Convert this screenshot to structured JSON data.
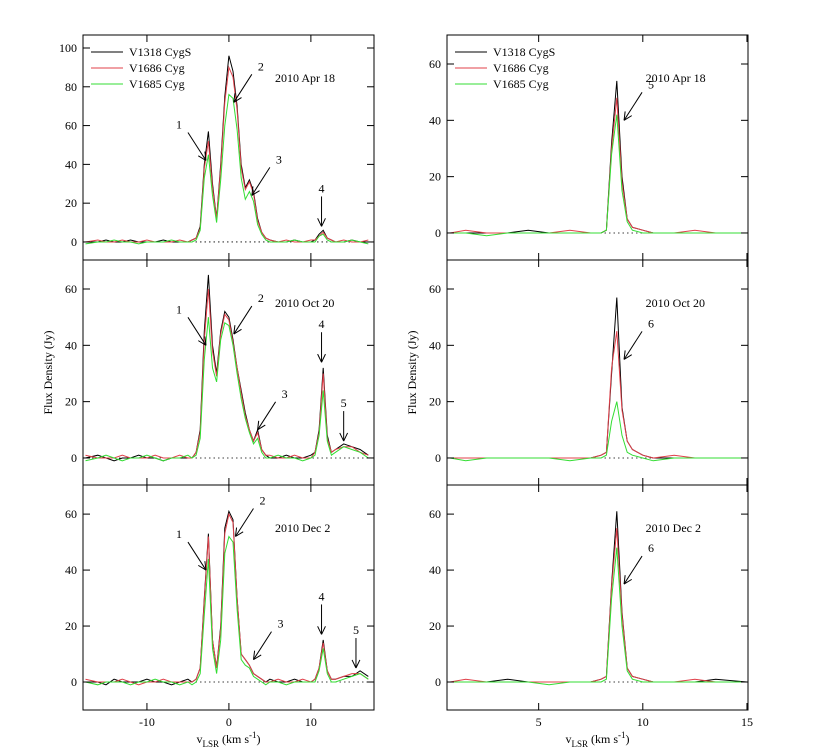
{
  "chart_data": [
    {
      "type": "line",
      "label": "2010 Apr 18",
      "legend": "upper left",
      "show_xticklabels": false,
      "xlim": [
        -17.8,
        17.7
      ],
      "xticks": [
        -10,
        0,
        10
      ],
      "ylim": [
        -9.3,
        106.7
      ],
      "yticks": [
        0,
        20,
        40,
        60,
        80,
        100
      ],
      "x": [
        -17.5,
        -16,
        -15,
        -14,
        -13,
        -12,
        -11,
        -10,
        -9,
        -8,
        -7,
        -6,
        -5,
        -4.5,
        -4,
        -3.5,
        -3,
        -2.5,
        -2,
        -1.5,
        -1,
        -0.5,
        0,
        0.5,
        1,
        1.5,
        2,
        2.5,
        3,
        3.5,
        4,
        4.5,
        5,
        6,
        7,
        8,
        9,
        10,
        10.5,
        11,
        11.5,
        12,
        12.5,
        13,
        14,
        15,
        16,
        17
      ],
      "series": [
        {
          "name": "V1318 CygS",
          "color": "#000000",
          "values": [
            0,
            0,
            1,
            0,
            0,
            1,
            0,
            0,
            0,
            1,
            0,
            0,
            0,
            1,
            2,
            8,
            40,
            57,
            30,
            12,
            40,
            75,
            96,
            88,
            70,
            40,
            28,
            32,
            26,
            12,
            5,
            2,
            1,
            0,
            0,
            1,
            0,
            0,
            1,
            4,
            6,
            2,
            1,
            0,
            0,
            1,
            0,
            0
          ]
        },
        {
          "name": "V1686 Cyg",
          "color": "#e0404a",
          "values": [
            0,
            1,
            0,
            0,
            1,
            0,
            0,
            1,
            0,
            0,
            0,
            1,
            0,
            1,
            2,
            7,
            38,
            52,
            28,
            12,
            38,
            72,
            90,
            85,
            68,
            38,
            27,
            31,
            25,
            11,
            5,
            2,
            1,
            0,
            1,
            0,
            0,
            1,
            1,
            3,
            5,
            2,
            1,
            0,
            1,
            0,
            0,
            1
          ]
        },
        {
          "name": "V1685 Cyg",
          "color": "#33dd33",
          "values": [
            -1,
            0,
            0,
            1,
            0,
            0,
            -1,
            0,
            0,
            0,
            1,
            0,
            0,
            0,
            1,
            6,
            33,
            45,
            24,
            10,
            32,
            60,
            76,
            74,
            58,
            33,
            22,
            26,
            21,
            9,
            4,
            1,
            0,
            0,
            0,
            1,
            0,
            0,
            0,
            3,
            4,
            1,
            0,
            0,
            0,
            1,
            0,
            -1
          ]
        }
      ],
      "annotations": [
        {
          "text": "1",
          "x": -2.8,
          "y": 42,
          "from": "upper-left"
        },
        {
          "text": "2",
          "x": 0.6,
          "y": 72,
          "from": "upper-right"
        },
        {
          "text": "3",
          "x": 2.8,
          "y": 24,
          "from": "upper-right"
        },
        {
          "text": "4",
          "x": 11.3,
          "y": 8,
          "from": "above"
        }
      ]
    },
    {
      "type": "line",
      "label": "2010 Apr 18",
      "legend": "upper left",
      "show_xticklabels": false,
      "xlim": [
        0.6,
        15.05
      ],
      "xticks": [
        5,
        10,
        15
      ],
      "ylim": [
        -9.6,
        70.3
      ],
      "yticks": [
        0,
        20,
        40,
        60
      ],
      "x": [
        0.75,
        1.5,
        2.5,
        3.5,
        4.5,
        5.5,
        6.5,
        7.5,
        8,
        8.25,
        8.5,
        8.75,
        9,
        9.25,
        9.5,
        10,
        10.5,
        11.5,
        12.5,
        13.5,
        15
      ],
      "series": [
        {
          "name": "V1318 CygS",
          "color": "#000000",
          "values": [
            0,
            0,
            0,
            0,
            1,
            0,
            0,
            0,
            0,
            1,
            32,
            54,
            20,
            5,
            2,
            1,
            0,
            0,
            0,
            0,
            0
          ]
        },
        {
          "name": "V1686 Cyg",
          "color": "#e0404a",
          "values": [
            0,
            1,
            0,
            0,
            0,
            0,
            1,
            0,
            0,
            1,
            30,
            48,
            18,
            5,
            2,
            1,
            0,
            0,
            1,
            0,
            0
          ]
        },
        {
          "name": "V1685 Cyg",
          "color": "#33dd33",
          "values": [
            0,
            0,
            -1,
            0,
            0,
            0,
            0,
            0,
            0,
            1,
            28,
            42,
            15,
            4,
            1,
            0,
            0,
            0,
            0,
            0,
            0
          ]
        }
      ],
      "annotations": [
        {
          "text": "5",
          "x": 9.1,
          "y": 40,
          "from": "upper-right"
        }
      ]
    },
    {
      "type": "line",
      "label": "2010 Oct 20",
      "ylabel": "Flux Density (Jy)",
      "show_xticklabels": false,
      "xlim": [
        -17.8,
        17.7
      ],
      "xticks": [
        -10,
        0,
        10
      ],
      "ylim": [
        -9.6,
        70.3
      ],
      "yticks": [
        0,
        20,
        40,
        60
      ],
      "x": [
        -17.5,
        -16,
        -15,
        -14,
        -13,
        -12,
        -11,
        -10,
        -9,
        -8,
        -7,
        -6,
        -5,
        -4.5,
        -4,
        -3.5,
        -3,
        -2.5,
        -2,
        -1.5,
        -1,
        -0.5,
        0,
        0.5,
        1,
        1.5,
        2,
        2.5,
        3,
        3.5,
        4,
        4.5,
        5,
        6,
        7,
        8,
        9,
        10,
        10.5,
        11,
        11.5,
        12,
        12.5,
        13,
        14,
        15,
        16,
        17
      ],
      "series": [
        {
          "color": "#000000",
          "values": [
            0,
            1,
            0,
            -1,
            0,
            0,
            1,
            0,
            0,
            -1,
            0,
            0,
            0,
            0,
            2,
            10,
            45,
            65,
            40,
            30,
            45,
            52,
            50,
            42,
            32,
            24,
            16,
            10,
            6,
            10,
            3,
            1,
            0,
            0,
            1,
            0,
            0,
            1,
            2,
            10,
            32,
            8,
            2,
            3,
            5,
            4,
            3,
            1
          ]
        },
        {
          "color": "#e0404a",
          "values": [
            1,
            0,
            0,
            0,
            1,
            0,
            0,
            0,
            1,
            0,
            0,
            1,
            0,
            0,
            2,
            9,
            42,
            60,
            38,
            29,
            44,
            51,
            49,
            41,
            32,
            23,
            15,
            10,
            6,
            9,
            3,
            1,
            1,
            0,
            0,
            1,
            0,
            0,
            2,
            9,
            30,
            7,
            2,
            3,
            4,
            4,
            2,
            1
          ]
        },
        {
          "color": "#33dd33",
          "values": [
            -1,
            0,
            1,
            0,
            -1,
            0,
            0,
            1,
            0,
            -1,
            0,
            0,
            1,
            0,
            1,
            7,
            35,
            50,
            32,
            27,
            42,
            48,
            47,
            40,
            30,
            21,
            14,
            9,
            5,
            7,
            2,
            0,
            0,
            1,
            0,
            0,
            -1,
            0,
            1,
            8,
            24,
            6,
            1,
            2,
            4,
            3,
            2,
            0
          ]
        }
      ],
      "annotations": [
        {
          "text": "1",
          "x": -2.8,
          "y": 40,
          "from": "upper-left"
        },
        {
          "text": "2",
          "x": 0.6,
          "y": 44,
          "from": "upper-right"
        },
        {
          "text": "3",
          "x": 3.5,
          "y": 10,
          "from": "upper-right"
        },
        {
          "text": "4",
          "x": 11.3,
          "y": 34,
          "from": "above"
        },
        {
          "text": "5",
          "x": 14,
          "y": 6,
          "from": "above"
        }
      ]
    },
    {
      "type": "line",
      "label": "2010 Oct 20",
      "ylabel": "Flux Density (Jy)",
      "show_xticklabels": false,
      "xlim": [
        0.6,
        15.05
      ],
      "xticks": [
        5,
        10,
        15
      ],
      "ylim": [
        -9.6,
        70.3
      ],
      "yticks": [
        0,
        20,
        40,
        60
      ],
      "x": [
        0.75,
        1.5,
        2.5,
        3.5,
        4.5,
        5.5,
        6.5,
        7.5,
        8,
        8.25,
        8.5,
        8.75,
        9,
        9.25,
        9.5,
        10,
        10.5,
        11.5,
        12.5,
        13.5,
        15
      ],
      "series": [
        {
          "color": "#000000",
          "values": [
            0,
            0,
            0,
            0,
            0,
            0,
            0,
            0,
            1,
            2,
            30,
            57,
            18,
            6,
            3,
            1,
            0,
            0,
            0,
            0,
            0
          ]
        },
        {
          "color": "#e0404a",
          "values": [
            0,
            0,
            0,
            0,
            0,
            0,
            0,
            0,
            1,
            2,
            32,
            45,
            17,
            6,
            3,
            1,
            0,
            1,
            0,
            0,
            0
          ]
        },
        {
          "color": "#33dd33",
          "values": [
            0,
            -1,
            0,
            0,
            0,
            0,
            -1,
            0,
            0,
            1,
            13,
            20,
            8,
            2,
            1,
            0,
            -1,
            0,
            0,
            0,
            0
          ]
        }
      ],
      "annotations": [
        {
          "text": "6",
          "x": 9.1,
          "y": 35,
          "from": "upper-right"
        }
      ]
    },
    {
      "type": "line",
      "label": "2010 Dec 2",
      "xlabel": [
        "v",
        "LSR",
        " (km s",
        "-1",
        ")"
      ],
      "show_xticklabels": true,
      "xlim": [
        -17.8,
        17.7
      ],
      "xticks": [
        -10,
        0,
        10
      ],
      "ylim": [
        -10,
        70.4
      ],
      "yticks": [
        0,
        20,
        40,
        60
      ],
      "x": [
        -17.5,
        -16,
        -15,
        -14,
        -13,
        -12,
        -11,
        -10,
        -9,
        -8,
        -7,
        -6,
        -5,
        -4.5,
        -4,
        -3.5,
        -3,
        -2.5,
        -2,
        -1.5,
        -1,
        -0.5,
        0,
        0.5,
        1,
        1.5,
        2,
        2.5,
        3,
        3.5,
        4,
        4.5,
        5,
        6,
        7,
        8,
        9,
        10,
        10.5,
        11,
        11.5,
        12,
        12.5,
        13,
        14,
        15,
        16,
        17
      ],
      "series": [
        {
          "color": "#000000",
          "values": [
            0,
            0,
            -1,
            1,
            0,
            0,
            0,
            1,
            0,
            0,
            -1,
            0,
            1,
            0,
            1,
            5,
            30,
            53,
            15,
            5,
            20,
            55,
            61,
            58,
            30,
            10,
            8,
            6,
            3,
            2,
            1,
            0,
            1,
            0,
            0,
            1,
            0,
            0,
            1,
            5,
            15,
            4,
            1,
            1,
            2,
            2,
            4,
            2
          ]
        },
        {
          "color": "#e0404a",
          "values": [
            1,
            0,
            0,
            0,
            1,
            0,
            -1,
            0,
            0,
            1,
            0,
            0,
            0,
            0,
            1,
            5,
            29,
            52,
            15,
            5,
            19,
            53,
            60,
            57,
            30,
            10,
            8,
            6,
            3,
            2,
            1,
            0,
            0,
            1,
            0,
            0,
            1,
            0,
            1,
            5,
            14,
            4,
            1,
            1,
            2,
            3,
            3,
            1
          ]
        },
        {
          "color": "#33dd33",
          "values": [
            0,
            -1,
            0,
            0,
            0,
            -1,
            0,
            0,
            1,
            0,
            0,
            -1,
            0,
            -1,
            0,
            3,
            24,
            44,
            12,
            3,
            15,
            46,
            52,
            50,
            26,
            8,
            6,
            5,
            2,
            1,
            0,
            -1,
            0,
            0,
            -1,
            0,
            0,
            0,
            0,
            4,
            12,
            3,
            0,
            0,
            1,
            2,
            3,
            1
          ]
        }
      ],
      "annotations": [
        {
          "text": "1",
          "x": -2.8,
          "y": 40,
          "from": "upper-left"
        },
        {
          "text": "2",
          "x": 0.8,
          "y": 52,
          "from": "upper-right"
        },
        {
          "text": "3",
          "x": 3,
          "y": 8,
          "from": "upper-right"
        },
        {
          "text": "4",
          "x": 11.3,
          "y": 17,
          "from": "above"
        },
        {
          "text": "5",
          "x": 15.5,
          "y": 5,
          "from": "above"
        }
      ]
    },
    {
      "type": "line",
      "label": "2010 Dec 2",
      "xlabel": [
        "v",
        "LSR",
        " (km s",
        "-1",
        ")"
      ],
      "show_xticklabels": true,
      "xlim": [
        0.6,
        15.05
      ],
      "xticks": [
        5,
        10,
        15
      ],
      "ylim": [
        -10,
        70.4
      ],
      "yticks": [
        0,
        20,
        40,
        60
      ],
      "x": [
        0.75,
        1.5,
        2.5,
        3.5,
        4.5,
        5.5,
        6.5,
        7.5,
        8,
        8.25,
        8.5,
        8.75,
        9,
        9.25,
        9.5,
        10,
        10.5,
        11.5,
        12.5,
        13.5,
        15
      ],
      "series": [
        {
          "color": "#000000",
          "values": [
            0,
            0,
            0,
            1,
            0,
            0,
            0,
            0,
            1,
            2,
            35,
            61,
            25,
            5,
            2,
            1,
            0,
            0,
            0,
            1,
            0
          ]
        },
        {
          "color": "#e0404a",
          "values": [
            0,
            1,
            0,
            0,
            0,
            0,
            0,
            0,
            1,
            2,
            34,
            55,
            24,
            5,
            2,
            1,
            0,
            0,
            1,
            0,
            0
          ]
        },
        {
          "color": "#33dd33",
          "values": [
            0,
            0,
            0,
            0,
            0,
            -1,
            0,
            0,
            0,
            1,
            30,
            48,
            20,
            4,
            1,
            0,
            0,
            0,
            0,
            0,
            0
          ]
        }
      ],
      "annotations": [
        {
          "text": "6",
          "x": 9.1,
          "y": 35,
          "from": "upper-right"
        }
      ]
    }
  ]
}
